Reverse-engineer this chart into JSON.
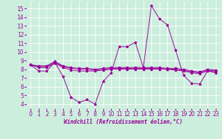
{
  "background_color": "#cceedd",
  "grid_color": "#ffffff",
  "line_color": "#990099",
  "x_label": "Windchill (Refroidissement éolien,°C)",
  "ylim": [
    3.5,
    15.8
  ],
  "xlim": [
    -0.5,
    23.5
  ],
  "yticks": [
    4,
    5,
    6,
    7,
    8,
    9,
    10,
    11,
    12,
    13,
    14,
    15
  ],
  "xticks": [
    0,
    1,
    2,
    3,
    4,
    5,
    6,
    7,
    8,
    9,
    10,
    11,
    12,
    13,
    14,
    15,
    16,
    17,
    18,
    19,
    20,
    21,
    22,
    23
  ],
  "series": [
    [
      8.5,
      7.8,
      7.8,
      8.8,
      7.2,
      4.8,
      4.2,
      4.5,
      4.0,
      6.6,
      7.6,
      10.6,
      10.6,
      11.1,
      8.2,
      15.3,
      13.8,
      13.1,
      10.2,
      7.3,
      6.4,
      6.3,
      7.8,
      7.6
    ],
    [
      8.5,
      8.2,
      8.2,
      8.7,
      8.2,
      7.9,
      7.8,
      7.8,
      7.8,
      7.9,
      8.0,
      8.0,
      8.0,
      8.0,
      8.0,
      8.0,
      8.0,
      8.0,
      7.9,
      7.8,
      7.6,
      7.5,
      7.8,
      7.7
    ],
    [
      8.5,
      8.3,
      8.3,
      8.8,
      8.3,
      8.1,
      8.0,
      8.0,
      7.9,
      8.0,
      8.1,
      8.1,
      8.1,
      8.1,
      8.1,
      8.1,
      8.1,
      8.0,
      8.0,
      7.9,
      7.7,
      7.6,
      7.9,
      7.8
    ],
    [
      8.5,
      8.4,
      8.4,
      8.9,
      8.4,
      8.2,
      8.1,
      8.1,
      8.0,
      8.1,
      8.2,
      8.2,
      8.2,
      8.2,
      8.2,
      8.2,
      8.2,
      8.1,
      8.1,
      8.0,
      7.8,
      7.7,
      8.0,
      7.9
    ]
  ],
  "label_fontsize": 5.5,
  "tick_fontsize": 5.5
}
